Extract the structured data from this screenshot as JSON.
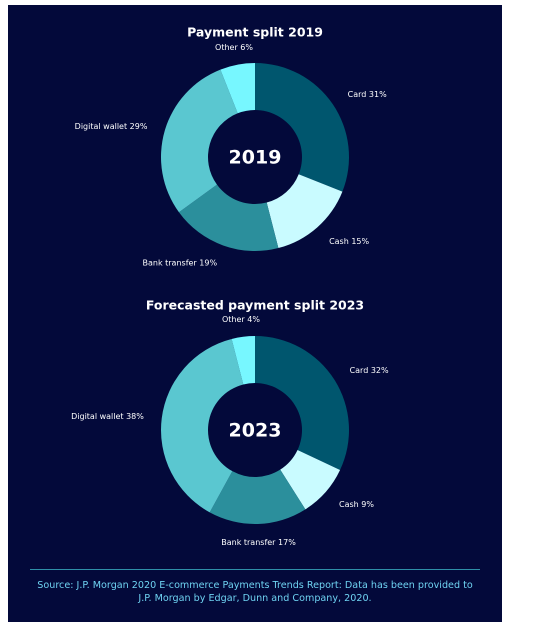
{
  "chart_data": [
    {
      "type": "donut",
      "title": "Payment split 2019",
      "center_label": "2019",
      "categories": [
        "Card",
        "Cash",
        "Bank transfer",
        "Digital wallet",
        "Other"
      ],
      "values": [
        31,
        15,
        19,
        29,
        6
      ],
      "value_labels": [
        "31%",
        "15%",
        "19%",
        "29%",
        "6%"
      ],
      "colors": [
        "#00566e",
        "#c9fbff",
        "#2b8f9c",
        "#5ac7d0",
        "#77f7ff"
      ]
    },
    {
      "type": "donut",
      "title": "Forecasted payment split 2023",
      "center_label": "2023",
      "categories": [
        "Card",
        "Cash",
        "Bank transfer",
        "Digital wallet",
        "Other"
      ],
      "values": [
        32,
        9,
        17,
        38,
        4
      ],
      "value_labels": [
        "32%",
        "9%",
        "17%",
        "38%",
        "4%"
      ],
      "colors": [
        "#00566e",
        "#c9fbff",
        "#2b8f9c",
        "#5ac7d0",
        "#77f7ff"
      ]
    }
  ],
  "footer": {
    "source": "Source: J.P. Morgan 2020 E-commerce Payments Trends Report: Data has been provided to J.P. Morgan by Edgar, Dunn and Company, 2020."
  }
}
